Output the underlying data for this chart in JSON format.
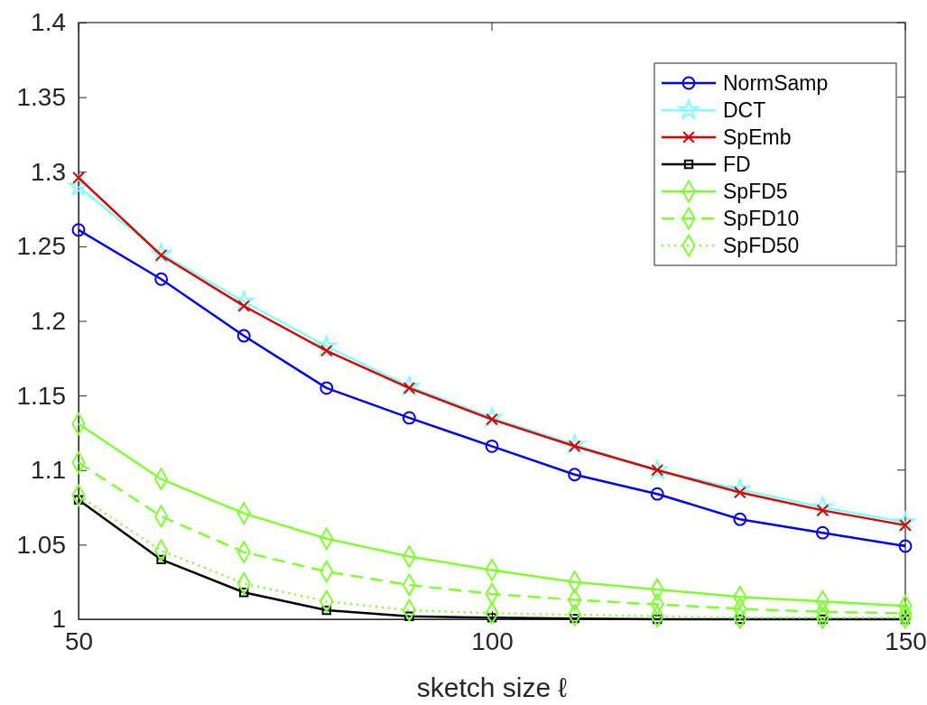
{
  "chart_data": {
    "type": "line",
    "xlabel": "sketch size ℓ",
    "x": [
      50,
      60,
      70,
      80,
      90,
      100,
      110,
      120,
      130,
      140,
      150
    ],
    "xlim": [
      50,
      150
    ],
    "xticks": [
      50,
      100,
      150
    ],
    "ylim": [
      1,
      1.4
    ],
    "yticks": [
      1,
      1.05,
      1.1,
      1.15,
      1.2,
      1.25,
      1.3,
      1.35,
      1.4
    ],
    "grid": false,
    "legend": "top right",
    "series": [
      {
        "name": "NormSamp",
        "color": "#0000ff",
        "marker": "circle",
        "line_style": "solid",
        "values": [
          1.261,
          1.228,
          1.19,
          1.155,
          1.135,
          1.116,
          1.097,
          1.084,
          1.067,
          1.058,
          1.049
        ]
      },
      {
        "name": "DCT",
        "color": "#80ffff",
        "marker": "star",
        "line_style": "solid",
        "values": [
          1.29,
          1.245,
          1.213,
          1.183,
          1.156,
          1.135,
          1.117,
          1.1,
          1.087,
          1.075,
          1.065
        ]
      },
      {
        "name": "SpEmb",
        "color": "#e00000",
        "marker": "cross",
        "line_style": "solid",
        "values": [
          1.296,
          1.244,
          1.21,
          1.18,
          1.155,
          1.134,
          1.116,
          1.1,
          1.085,
          1.073,
          1.063
        ]
      },
      {
        "name": "FD",
        "color": "#000000",
        "marker": "square",
        "line_style": "solid",
        "values": [
          1.08,
          1.04,
          1.018,
          1.006,
          1.002,
          1.001,
          1.0005,
          1,
          1,
          1,
          1
        ]
      },
      {
        "name": "SpFD5",
        "color": "#80ff30",
        "marker": "diamond",
        "line_style": "solid",
        "values": [
          1.131,
          1.094,
          1.071,
          1.054,
          1.042,
          1.033,
          1.025,
          1.02,
          1.015,
          1.012,
          1.009
        ]
      },
      {
        "name": "SpFD10",
        "color": "#80ff30",
        "marker": "diamond",
        "line_style": "dashed",
        "values": [
          1.105,
          1.069,
          1.045,
          1.032,
          1.023,
          1.017,
          1.013,
          1.01,
          1.007,
          1.005,
          1.004
        ]
      },
      {
        "name": "SpFD50",
        "color": "#80ff30",
        "marker": "diamond",
        "line_style": "dotted",
        "values": [
          1.083,
          1.046,
          1.024,
          1.012,
          1.006,
          1.004,
          1.003,
          1.002,
          1.001,
          1.001,
          1.001
        ]
      }
    ]
  }
}
